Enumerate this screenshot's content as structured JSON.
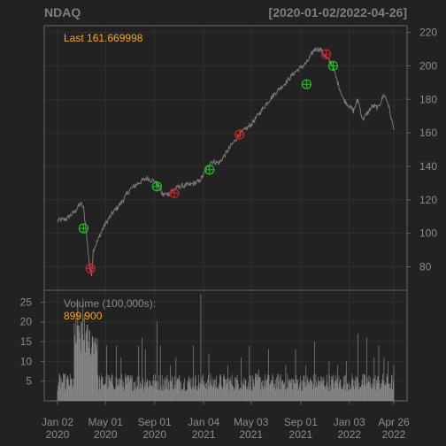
{
  "symbol": "NDAQ",
  "date_range": "[2020-01-02/2022-04-26]",
  "last_label": "Last 161.669998",
  "volume_label": "Volume (100,000s):",
  "volume_last": "899,900",
  "colors": {
    "background": "#222222",
    "price_line": "#7a7a7a",
    "volume_bars": "#8a8a8a",
    "accent": "#ffa500",
    "buy_marker": "#22bb22",
    "sell_marker": "#cc2222",
    "grid": "#2f2f2f"
  },
  "x_ticks": [
    {
      "line1": "Jan 02",
      "line2": "2020"
    },
    {
      "line1": "May 01",
      "line2": "2020"
    },
    {
      "line1": "Sep 01",
      "line2": "2020"
    },
    {
      "line1": "Jan 04",
      "line2": "2021"
    },
    {
      "line1": "May 03",
      "line2": "2021"
    },
    {
      "line1": "Sep 01",
      "line2": "2021"
    },
    {
      "line1": "Jan 03",
      "line2": "2022"
    },
    {
      "line1": "Apr 26",
      "line2": "2022"
    }
  ],
  "chart_data": {
    "type": "line",
    "legend": "none",
    "grid": true,
    "price_axis": {
      "ticks": [
        80,
        100,
        120,
        140,
        160,
        180,
        200,
        220
      ],
      "ylim": [
        66,
        224
      ]
    },
    "volume_axis": {
      "ticks": [
        5,
        10,
        15,
        20,
        25
      ],
      "ylim": [
        0,
        28
      ]
    },
    "x_tick_index": [
      0,
      83,
      168,
      253,
      335,
      421,
      505,
      582
    ],
    "price_series": {
      "name": "NDAQ close",
      "anchors": [
        [
          0,
          107.5
        ],
        [
          15,
          108.5
        ],
        [
          30,
          113
        ],
        [
          40,
          118
        ],
        [
          45,
          115
        ],
        [
          49,
          103
        ],
        [
          54,
          86
        ],
        [
          56,
          78
        ],
        [
          59,
          76
        ],
        [
          62,
          90
        ],
        [
          70,
          96
        ],
        [
          80,
          104
        ],
        [
          95,
          112
        ],
        [
          110,
          118
        ],
        [
          125,
          126
        ],
        [
          140,
          130
        ],
        [
          155,
          133
        ],
        [
          168,
          131
        ],
        [
          175,
          128
        ],
        [
          182,
          123
        ],
        [
          195,
          124
        ],
        [
          210,
          128
        ],
        [
          230,
          129
        ],
        [
          245,
          131
        ],
        [
          253,
          135
        ],
        [
          265,
          143
        ],
        [
          280,
          142
        ],
        [
          300,
          152
        ],
        [
          315,
          159
        ],
        [
          335,
          165
        ],
        [
          350,
          172
        ],
        [
          365,
          179
        ],
        [
          380,
          185
        ],
        [
          395,
          190
        ],
        [
          410,
          196
        ],
        [
          421,
          199
        ],
        [
          432,
          202
        ],
        [
          445,
          210
        ],
        [
          455,
          210
        ],
        [
          465,
          205
        ],
        [
          475,
          201
        ],
        [
          485,
          190
        ],
        [
          495,
          180
        ],
        [
          505,
          176
        ],
        [
          512,
          173
        ],
        [
          520,
          180
        ],
        [
          528,
          168
        ],
        [
          535,
          171
        ],
        [
          545,
          176
        ],
        [
          555,
          175
        ],
        [
          565,
          183
        ],
        [
          572,
          178
        ],
        [
          578,
          168
        ],
        [
          582,
          161.67
        ]
      ]
    },
    "volume_series": {
      "name": "Volume (100,000s)",
      "spikes": [
        [
          32,
          21
        ],
        [
          35,
          25
        ],
        [
          38,
          19
        ],
        [
          41,
          20
        ],
        [
          44,
          26
        ],
        [
          47,
          22
        ],
        [
          50,
          18
        ],
        [
          53,
          15
        ],
        [
          58,
          12
        ],
        [
          66,
          16
        ],
        [
          85,
          14
        ],
        [
          102,
          14
        ],
        [
          110,
          11
        ],
        [
          140,
          14
        ],
        [
          146,
          16
        ],
        [
          152,
          13
        ],
        [
          172,
          20
        ],
        [
          178,
          14
        ],
        [
          195,
          9
        ],
        [
          205,
          11
        ],
        [
          235,
          14
        ],
        [
          248,
          27
        ],
        [
          262,
          12
        ],
        [
          295,
          9
        ],
        [
          318,
          11
        ],
        [
          332,
          14
        ],
        [
          348,
          8
        ],
        [
          365,
          13
        ],
        [
          395,
          9
        ],
        [
          412,
          13
        ],
        [
          430,
          9
        ],
        [
          445,
          15
        ],
        [
          470,
          10
        ],
        [
          485,
          9
        ],
        [
          500,
          10
        ],
        [
          520,
          17
        ],
        [
          535,
          16
        ],
        [
          548,
          11
        ],
        [
          556,
          14
        ],
        [
          565,
          11
        ],
        [
          572,
          10
        ],
        [
          582,
          9
        ]
      ]
    },
    "signals": [
      {
        "type": "buy",
        "index": 45,
        "price": 103
      },
      {
        "type": "sell",
        "index": 57,
        "price": 79
      },
      {
        "type": "buy",
        "index": 172,
        "price": 128
      },
      {
        "type": "sell",
        "index": 202,
        "price": 124
      },
      {
        "type": "buy",
        "index": 263,
        "price": 138
      },
      {
        "type": "sell",
        "index": 315,
        "price": 159
      },
      {
        "type": "buy",
        "index": 431,
        "price": 189
      },
      {
        "type": "sell",
        "index": 465,
        "price": 207
      },
      {
        "type": "buy",
        "index": 477,
        "price": 200
      }
    ]
  }
}
